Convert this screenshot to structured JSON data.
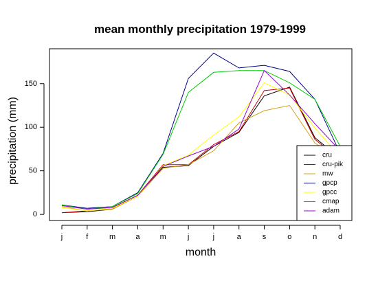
{
  "chart_data": {
    "type": "line",
    "title": "mean monthly precipitation 1979-1999",
    "xlabel": "month",
    "ylabel": "precipitation (mm)",
    "categories": [
      "j",
      "f",
      "m",
      "a",
      "m",
      "j",
      "j",
      "a",
      "s",
      "o",
      "n",
      "d"
    ],
    "y_ticks": [
      0,
      50,
      100,
      150
    ],
    "ylim": [
      -7,
      190
    ],
    "grid": false,
    "legend_position": "bottom-right",
    "series": [
      {
        "name": "cru",
        "color": "#000000",
        "values": [
          2,
          3,
          6,
          21,
          54,
          56,
          78,
          94,
          136,
          146,
          88,
          64
        ]
      },
      {
        "name": "cru-pik",
        "color": "#cc0000",
        "values": [
          2,
          4,
          7,
          22,
          57,
          57,
          80,
          95,
          142,
          145,
          86,
          63
        ]
      },
      {
        "name": "mw",
        "color": "#d4a017",
        "values": [
          9,
          4,
          6,
          21,
          53,
          57,
          73,
          105,
          119,
          125,
          82,
          62
        ]
      },
      {
        "name": "gpcp",
        "color": "#00008b",
        "values": [
          11,
          7,
          9,
          25,
          70,
          156,
          185,
          168,
          171,
          164,
          132,
          70
        ]
      },
      {
        "name": "gpcc",
        "color": "#ffff00",
        "values": [
          8,
          4,
          7,
          21,
          56,
          68,
          91,
          112,
          151,
          137,
          99,
          66
        ]
      },
      {
        "name": "cmap",
        "color": "#00cc00",
        "values": [
          11,
          6,
          9,
          24,
          69,
          140,
          163,
          165,
          165,
          151,
          132,
          78
        ]
      },
      {
        "name": "adam",
        "color": "#9400d3",
        "values": [
          10,
          6,
          8,
          22,
          55,
          67,
          78,
          98,
          165,
          137,
          104,
          73
        ]
      }
    ]
  }
}
